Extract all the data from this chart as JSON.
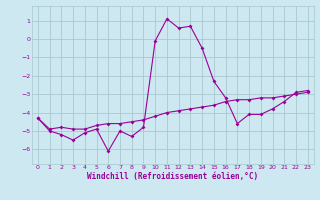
{
  "title": "",
  "xlabel": "Windchill (Refroidissement éolien,°C)",
  "ylabel": "",
  "bg_color": "#cde8f0",
  "line_color": "#990099",
  "grid_color": "#a8c8d0",
  "xlim": [
    -0.5,
    23.5
  ],
  "ylim": [
    -6.8,
    1.8
  ],
  "xticks": [
    0,
    1,
    2,
    3,
    4,
    5,
    6,
    7,
    8,
    9,
    10,
    11,
    12,
    13,
    14,
    15,
    16,
    17,
    18,
    19,
    20,
    21,
    22,
    23
  ],
  "yticks": [
    -6,
    -5,
    -4,
    -3,
    -2,
    -1,
    0,
    1
  ],
  "data_x": [
    0,
    1,
    2,
    3,
    4,
    5,
    6,
    7,
    8,
    9,
    10,
    11,
    12,
    13,
    14,
    15,
    16,
    17,
    18,
    19,
    20,
    21,
    22,
    23
  ],
  "data_y1": [
    -4.3,
    -5.0,
    -5.2,
    -5.5,
    -5.1,
    -4.9,
    -6.1,
    -5.0,
    -5.3,
    -4.8,
    -0.1,
    1.1,
    0.6,
    0.7,
    -0.5,
    -2.3,
    -3.2,
    -4.6,
    -4.1,
    -4.1,
    -3.8,
    -3.4,
    -2.9,
    -2.8
  ],
  "data_y2": [
    -4.3,
    -4.9,
    -4.8,
    -4.9,
    -4.9,
    -4.7,
    -4.6,
    -4.6,
    -4.5,
    -4.4,
    -4.2,
    -4.0,
    -3.9,
    -3.8,
    -3.7,
    -3.6,
    -3.4,
    -3.3,
    -3.3,
    -3.2,
    -3.2,
    -3.1,
    -3.0,
    -2.9
  ]
}
